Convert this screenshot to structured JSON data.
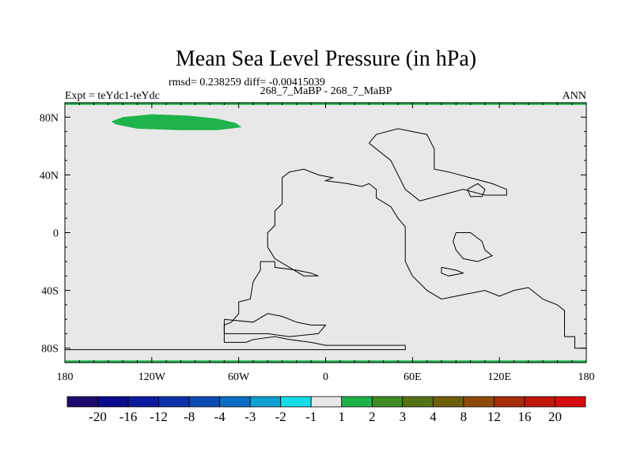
{
  "chart_data": {
    "type": "heatmap",
    "title": "Mean Sea Level Pressure (in hPa)",
    "stats_line": "rmsd= 0.238259 diff= -0.00415039",
    "left_label": "Expt = teYdc1-teYdc",
    "center_label": "268_7_MaBP - 268_7_MaBP",
    "right_label": "ANN",
    "background_color": "#e8e8e8",
    "xlim": [
      -180,
      180
    ],
    "ylim": [
      -90,
      90
    ],
    "x_ticks": [
      {
        "value": -180,
        "label": "180"
      },
      {
        "value": -120,
        "label": "120W"
      },
      {
        "value": -60,
        "label": "60W"
      },
      {
        "value": 0,
        "label": "0"
      },
      {
        "value": 60,
        "label": "60E"
      },
      {
        "value": 120,
        "label": "120E"
      },
      {
        "value": 180,
        "label": "180"
      }
    ],
    "y_ticks": [
      {
        "value": 80,
        "label": "80N"
      },
      {
        "value": 40,
        "label": "40N"
      },
      {
        "value": 0,
        "label": "0"
      },
      {
        "value": -40,
        "label": "40S"
      },
      {
        "value": -80,
        "label": "80S"
      }
    ],
    "colorbar": {
      "labels": [
        "-20",
        "-16",
        "-12",
        "-8",
        "-4",
        "-3",
        "-2",
        "-1",
        "1",
        "2",
        "3",
        "4",
        "8",
        "12",
        "16",
        "20"
      ],
      "colors": [
        "#1e0a6e",
        "#0a0a8c",
        "#0c1a9e",
        "#0e32aa",
        "#0a4cb4",
        "#0a6ec3",
        "#0fa0d2",
        "#14dce6",
        "#e8e8e8",
        "#1eb44b",
        "#3c8c23",
        "#557314",
        "#6e5f0a",
        "#8c4b0a",
        "#a52d0a",
        "#be1909",
        "#d70b0b"
      ]
    },
    "features": [
      {
        "name": "positive-anomaly-1-2-hpa",
        "bin": "1 to 2",
        "color": "#1eb44b",
        "polygon": [
          [
            -148,
            77
          ],
          [
            -140,
            80
          ],
          [
            -120,
            82
          ],
          [
            -95,
            81
          ],
          [
            -75,
            79
          ],
          [
            -62,
            76
          ],
          [
            -58,
            73
          ],
          [
            -75,
            71
          ],
          [
            -100,
            71
          ],
          [
            -130,
            72
          ],
          [
            -145,
            75
          ]
        ]
      },
      {
        "name": "positive-anomaly-north-edge",
        "bin": "1 to 2",
        "color": "#1eb44b",
        "polygon": [
          [
            -180,
            88.5
          ],
          [
            180,
            88.5
          ],
          [
            180,
            90
          ],
          [
            -180,
            90
          ]
        ]
      },
      {
        "name": "positive-anomaly-south-edge",
        "bin": "1 to 2",
        "color": "#1eb44b",
        "polygon": [
          [
            -180,
            -90
          ],
          [
            180,
            -90
          ],
          [
            180,
            -88.5
          ],
          [
            -180,
            -88.5
          ]
        ]
      }
    ],
    "coastlines": [
      [
        [
          -180,
          -81
        ],
        [
          55,
          -81
        ],
        [
          55,
          -78
        ],
        [
          0,
          -78
        ],
        [
          -10,
          -76
        ],
        [
          -25,
          -74
        ],
        [
          -35,
          -72
        ],
        [
          -50,
          -74
        ],
        [
          -55,
          -76
        ],
        [
          -70,
          -76
        ],
        [
          -70,
          -64
        ],
        [
          -65,
          -62
        ],
        [
          -60,
          -56
        ],
        [
          -60,
          -48
        ],
        [
          -52,
          -46
        ],
        [
          -50,
          -34
        ],
        [
          -45,
          -26
        ],
        [
          -45,
          -20
        ],
        [
          -35,
          -20
        ],
        [
          -35,
          -24
        ],
        [
          -20,
          -26
        ],
        [
          -10,
          -28
        ],
        [
          -5,
          -30
        ],
        [
          -15,
          -30
        ],
        [
          -25,
          -24
        ],
        [
          -35,
          -18
        ],
        [
          -40,
          -10
        ],
        [
          -40,
          0
        ],
        [
          -35,
          5
        ],
        [
          -35,
          15
        ],
        [
          -30,
          20
        ],
        [
          -30,
          38
        ],
        [
          -25,
          42
        ],
        [
          -15,
          44
        ],
        [
          -5,
          40
        ],
        [
          5,
          38
        ],
        [
          0,
          36
        ],
        [
          15,
          34
        ],
        [
          25,
          32
        ],
        [
          30,
          34
        ],
        [
          35,
          30
        ],
        [
          35,
          24
        ],
        [
          45,
          18
        ],
        [
          50,
          10
        ],
        [
          55,
          4
        ],
        [
          55,
          -20
        ],
        [
          60,
          -30
        ],
        [
          70,
          -40
        ],
        [
          80,
          -46
        ],
        [
          90,
          -44
        ],
        [
          110,
          -40
        ],
        [
          120,
          -44
        ],
        [
          130,
          -40
        ],
        [
          140,
          -38
        ],
        [
          150,
          -46
        ],
        [
          160,
          -50
        ],
        [
          165,
          -54
        ],
        [
          165,
          -72
        ],
        [
          172,
          -72
        ],
        [
          172,
          -80
        ],
        [
          180,
          -80
        ]
      ],
      [
        [
          30,
          62
        ],
        [
          35,
          68
        ],
        [
          50,
          72
        ],
        [
          70,
          68
        ],
        [
          75,
          58
        ],
        [
          75,
          44
        ],
        [
          85,
          42
        ],
        [
          100,
          38
        ],
        [
          115,
          34
        ],
        [
          125,
          30
        ],
        [
          125,
          26
        ],
        [
          110,
          26
        ],
        [
          95,
          30
        ],
        [
          80,
          26
        ],
        [
          65,
          22
        ],
        [
          55,
          30
        ],
        [
          50,
          40
        ],
        [
          45,
          50
        ],
        [
          30,
          62
        ]
      ],
      [
        [
          98,
          30
        ],
        [
          105,
          34
        ],
        [
          110,
          30
        ],
        [
          108,
          25
        ],
        [
          100,
          25
        ],
        [
          98,
          30
        ]
      ],
      [
        [
          -70,
          -60
        ],
        [
          -50,
          -62
        ],
        [
          -40,
          -56
        ],
        [
          -30,
          -58
        ],
        [
          -20,
          -62
        ],
        [
          -10,
          -64
        ],
        [
          0,
          -64
        ],
        [
          -5,
          -70
        ],
        [
          -25,
          -72
        ],
        [
          -40,
          -70
        ],
        [
          -55,
          -70
        ],
        [
          -70,
          -70
        ],
        [
          -70,
          -60
        ]
      ],
      [
        [
          90,
          0
        ],
        [
          100,
          0
        ],
        [
          108,
          -6
        ],
        [
          110,
          -12
        ],
        [
          115,
          -16
        ],
        [
          105,
          -20
        ],
        [
          95,
          -18
        ],
        [
          90,
          -12
        ],
        [
          88,
          -6
        ],
        [
          90,
          0
        ]
      ],
      [
        [
          80,
          -24
        ],
        [
          90,
          -26
        ],
        [
          95,
          -28
        ],
        [
          85,
          -30
        ],
        [
          80,
          -28
        ],
        [
          80,
          -24
        ]
      ]
    ]
  }
}
